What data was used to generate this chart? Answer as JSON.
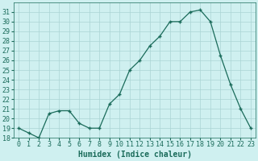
{
  "x": [
    0,
    1,
    2,
    3,
    4,
    5,
    6,
    7,
    8,
    9,
    10,
    11,
    12,
    13,
    14,
    15,
    16,
    17,
    18,
    19,
    20,
    21,
    22,
    23
  ],
  "y": [
    19,
    18.5,
    18.0,
    20.5,
    20.8,
    20.8,
    19.5,
    19.0,
    19.0,
    21.5,
    22.5,
    25.0,
    26.0,
    27.5,
    28.5,
    30.0,
    30.0,
    31.0,
    31.2,
    30.0,
    26.5,
    23.5,
    21.0,
    19.0
  ],
  "xlabel": "Humidex (Indice chaleur)",
  "ylim": [
    18,
    32
  ],
  "xlim": [
    -0.5,
    23.5
  ],
  "yticks": [
    18,
    19,
    20,
    21,
    22,
    23,
    24,
    25,
    26,
    27,
    28,
    29,
    30,
    31
  ],
  "xticks": [
    0,
    1,
    2,
    3,
    4,
    5,
    6,
    7,
    8,
    9,
    10,
    11,
    12,
    13,
    14,
    15,
    16,
    17,
    18,
    19,
    20,
    21,
    22,
    23
  ],
  "line_color": "#1a6b5a",
  "marker": "+",
  "bg_color": "#cff0f0",
  "grid_color": "#aad4d4",
  "label_fontsize": 7,
  "tick_fontsize": 6
}
